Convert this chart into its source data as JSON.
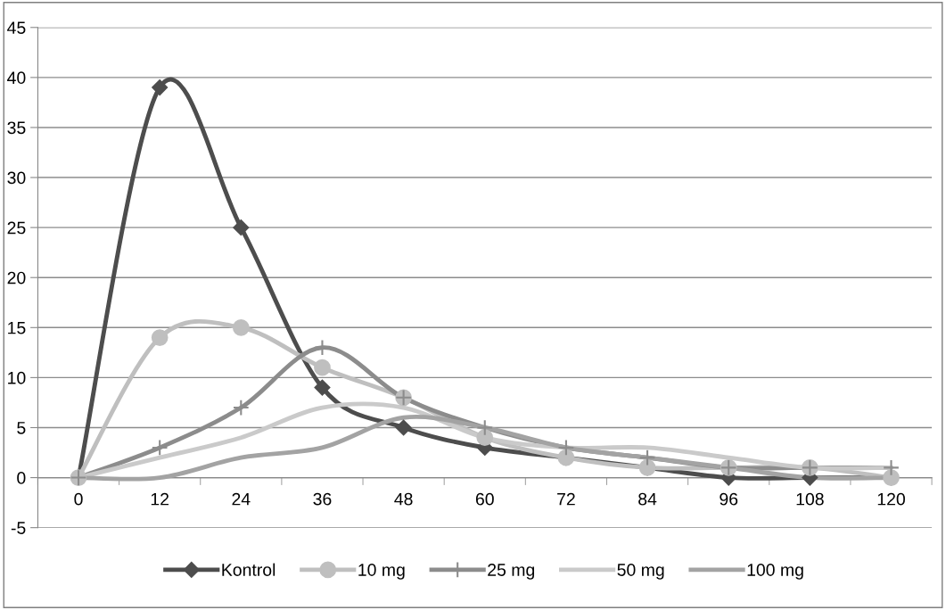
{
  "chart_data": {
    "type": "line",
    "categories": [
      "0",
      "12",
      "24",
      "36",
      "48",
      "60",
      "72",
      "84",
      "96",
      "108",
      "120"
    ],
    "series": [
      {
        "name": "Kontrol",
        "color": "#4d4d4d",
        "marker": "diamond",
        "values": [
          0,
          39,
          25,
          9,
          5,
          3,
          2,
          1,
          0,
          0,
          0
        ]
      },
      {
        "name": "10 mg",
        "color": "#bfbfbf",
        "marker": "circle",
        "values": [
          0,
          14,
          15,
          11,
          8,
          4,
          2,
          1,
          1,
          1,
          0
        ]
      },
      {
        "name": "25 mg",
        "color": "#8c8c8c",
        "marker": "cross",
        "values": [
          0,
          3,
          7,
          13,
          8,
          5,
          3,
          2,
          1,
          1,
          1
        ]
      },
      {
        "name": "50 mg",
        "color": "#cacaca",
        "marker": "none",
        "values": [
          0,
          2,
          4,
          7,
          7,
          4,
          3,
          3,
          2,
          1,
          1
        ]
      },
      {
        "name": "100 mg",
        "color": "#a3a3a3",
        "marker": "none",
        "values": [
          0,
          0,
          2,
          3,
          6,
          5,
          3,
          2,
          1,
          0,
          0
        ]
      }
    ],
    "ylim": [
      -5,
      45
    ],
    "yticks": [
      -5,
      0,
      5,
      10,
      15,
      20,
      25,
      30,
      35,
      40,
      45
    ],
    "grid": "y",
    "legend": "bottom",
    "line_style": "solid"
  }
}
